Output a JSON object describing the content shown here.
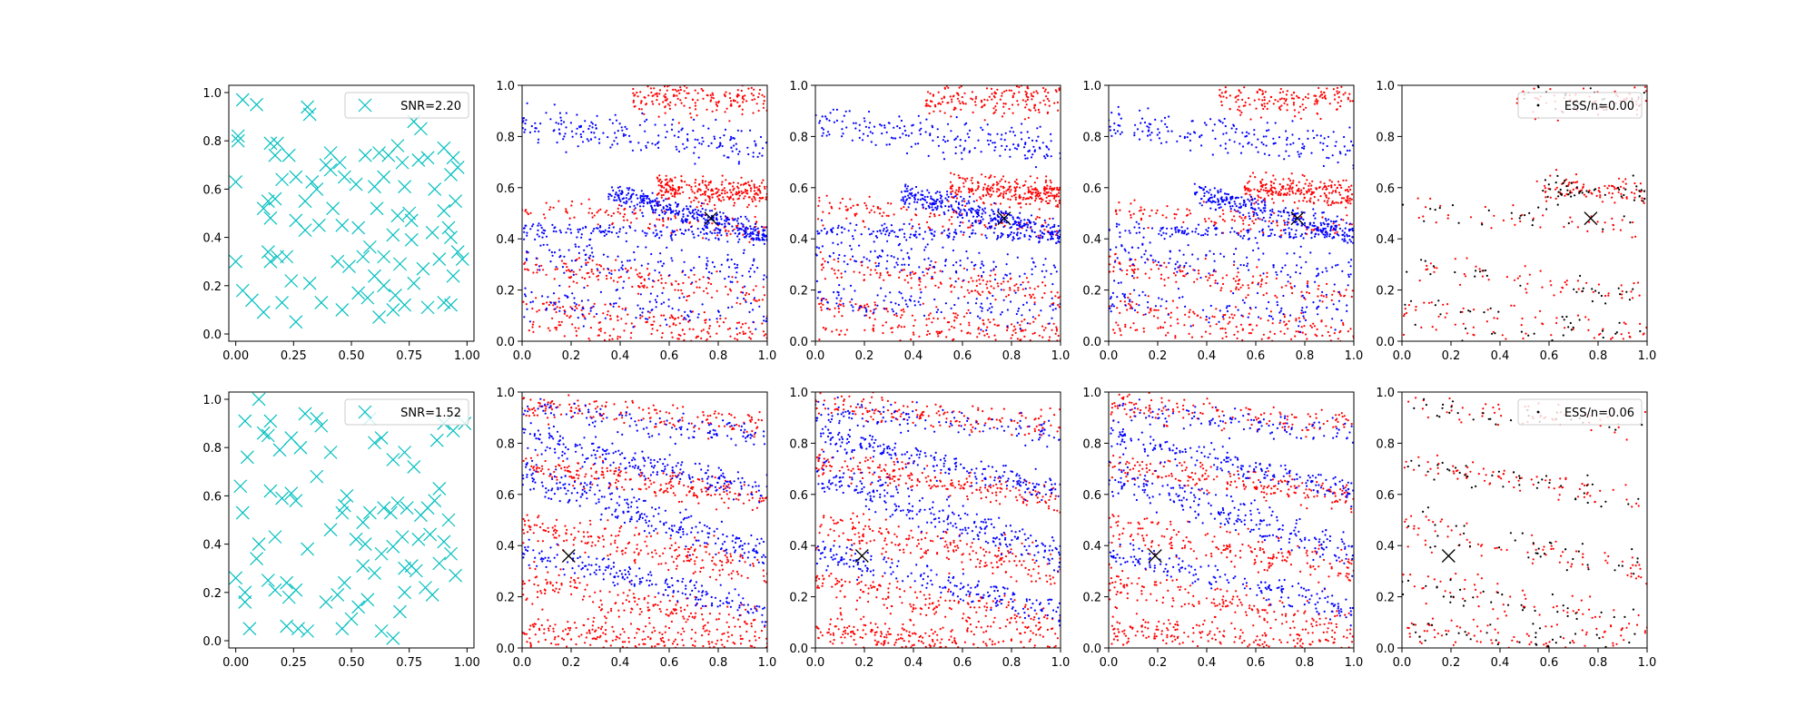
{
  "colors": {
    "design_marker": "#00bfbf",
    "red_points": "#ff0000",
    "blue_points": "#0000ff",
    "black_points": "#000000",
    "true_marker": "#000000"
  },
  "chart_data": [
    {
      "type": "scatter",
      "row": 0,
      "col": 0,
      "xlim": [
        -0.03,
        1.03
      ],
      "ylim": [
        -0.03,
        1.03
      ],
      "xticks": [
        "0.00",
        "0.25",
        "0.50",
        "0.75",
        "1.00"
      ],
      "yticks": [
        "0.0",
        "0.2",
        "0.4",
        "0.6",
        "0.8",
        "1.0"
      ],
      "legend": {
        "label": "SNR=2.20",
        "placement": "top-right",
        "marker": "x"
      },
      "series": [
        {
          "name": "SNR=2.20",
          "marker": "x",
          "color": "#00bfbf",
          "points": [
            [
              0.03,
              0.97
            ],
            [
              0.09,
              0.95
            ],
            [
              0.01,
              0.82
            ],
            [
              0.01,
              0.8
            ],
            [
              0.0,
              0.63
            ],
            [
              0.31,
              0.94
            ],
            [
              0.32,
              0.91
            ],
            [
              0.15,
              0.79
            ],
            [
              0.18,
              0.79
            ],
            [
              0.17,
              0.74
            ],
            [
              0.23,
              0.74
            ],
            [
              0.41,
              0.75
            ],
            [
              0.45,
              0.71
            ],
            [
              0.39,
              0.7
            ],
            [
              0.41,
              0.68
            ],
            [
              0.26,
              0.65
            ],
            [
              0.2,
              0.64
            ],
            [
              0.14,
              0.55
            ],
            [
              0.12,
              0.52
            ],
            [
              0.15,
              0.48
            ],
            [
              0.17,
              0.56
            ],
            [
              0.3,
              0.55
            ],
            [
              0.35,
              0.6
            ],
            [
              0.33,
              0.63
            ],
            [
              0.47,
              0.65
            ],
            [
              0.52,
              0.62
            ],
            [
              0.56,
              0.74
            ],
            [
              0.62,
              0.75
            ],
            [
              0.66,
              0.74
            ],
            [
              0.7,
              0.78
            ],
            [
              0.77,
              0.88
            ],
            [
              0.8,
              0.85
            ],
            [
              0.83,
              0.73
            ],
            [
              0.79,
              0.72
            ],
            [
              0.72,
              0.71
            ],
            [
              0.64,
              0.65
            ],
            [
              0.6,
              0.61
            ],
            [
              0.73,
              0.61
            ],
            [
              0.86,
              0.6
            ],
            [
              0.9,
              0.77
            ],
            [
              0.94,
              0.73
            ],
            [
              0.96,
              0.69
            ],
            [
              0.93,
              0.66
            ],
            [
              0.95,
              0.55
            ],
            [
              0.9,
              0.51
            ],
            [
              0.75,
              0.5
            ],
            [
              0.76,
              0.47
            ],
            [
              0.7,
              0.49
            ],
            [
              0.68,
              0.41
            ],
            [
              0.76,
              0.39
            ],
            [
              0.71,
              0.29
            ],
            [
              0.58,
              0.36
            ],
            [
              0.55,
              0.32
            ],
            [
              0.46,
              0.45
            ],
            [
              0.42,
              0.52
            ],
            [
              0.36,
              0.45
            ],
            [
              0.3,
              0.43
            ],
            [
              0.26,
              0.47
            ],
            [
              0.14,
              0.34
            ],
            [
              0.15,
              0.3
            ],
            [
              0.18,
              0.32
            ],
            [
              0.22,
              0.32
            ],
            [
              0.24,
              0.22
            ],
            [
              0.32,
              0.21
            ],
            [
              0.44,
              0.3
            ],
            [
              0.49,
              0.28
            ],
            [
              0.6,
              0.24
            ],
            [
              0.64,
              0.2
            ],
            [
              0.69,
              0.16
            ],
            [
              0.73,
              0.12
            ],
            [
              0.68,
              0.1
            ],
            [
              0.77,
              0.21
            ],
            [
              0.83,
              0.11
            ],
            [
              0.9,
              0.13
            ],
            [
              0.93,
              0.12
            ],
            [
              0.94,
              0.24
            ],
            [
              0.98,
              0.31
            ],
            [
              0.93,
              0.4
            ],
            [
              0.92,
              0.44
            ],
            [
              0.96,
              0.34
            ],
            [
              0.0,
              0.3
            ],
            [
              0.03,
              0.18
            ],
            [
              0.07,
              0.14
            ],
            [
              0.12,
              0.09
            ],
            [
              0.2,
              0.13
            ],
            [
              0.26,
              0.05
            ],
            [
              0.37,
              0.13
            ],
            [
              0.46,
              0.1
            ],
            [
              0.53,
              0.17
            ],
            [
              0.57,
              0.15
            ],
            [
              0.62,
              0.07
            ],
            [
              0.88,
              0.31
            ],
            [
              0.81,
              0.27
            ],
            [
              0.85,
              0.42
            ],
            [
              0.61,
              0.52
            ],
            [
              0.53,
              0.44
            ],
            [
              0.64,
              0.32
            ]
          ]
        }
      ]
    },
    {
      "type": "scatter",
      "row": 0,
      "col": 1,
      "xlim": [
        0,
        1
      ],
      "ylim": [
        0,
        1
      ],
      "xticks": [
        "0.0",
        "0.2",
        "0.4",
        "0.6",
        "0.8",
        "1.0"
      ],
      "yticks": [
        "0.0",
        "0.2",
        "0.4",
        "0.6",
        "0.8",
        "1.0"
      ],
      "true_marker": [
        0.77,
        0.48
      ],
      "series": [
        {
          "color": "#ff0000"
        },
        {
          "color": "#0000ff"
        }
      ]
    },
    {
      "type": "scatter",
      "row": 0,
      "col": 2,
      "xlim": [
        0,
        1
      ],
      "ylim": [
        0,
        1
      ],
      "xticks": [
        "0.0",
        "0.2",
        "0.4",
        "0.6",
        "0.8",
        "1.0"
      ],
      "yticks": [
        "0.0",
        "0.2",
        "0.4",
        "0.6",
        "0.8",
        "1.0"
      ],
      "true_marker": [
        0.77,
        0.48
      ],
      "series": [
        {
          "color": "#ff0000"
        },
        {
          "color": "#0000ff"
        }
      ]
    },
    {
      "type": "scatter",
      "row": 0,
      "col": 3,
      "xlim": [
        0,
        1
      ],
      "ylim": [
        0,
        1
      ],
      "xticks": [
        "0.0",
        "0.2",
        "0.4",
        "0.6",
        "0.8",
        "1.0"
      ],
      "yticks": [
        "0.0",
        "0.2",
        "0.4",
        "0.6",
        "0.8",
        "1.0"
      ],
      "true_marker": [
        0.77,
        0.48
      ],
      "series": [
        {
          "color": "#ff0000"
        },
        {
          "color": "#0000ff"
        }
      ]
    },
    {
      "type": "scatter",
      "row": 0,
      "col": 4,
      "xlim": [
        0,
        1
      ],
      "ylim": [
        0,
        1
      ],
      "xticks": [
        "0.0",
        "0.2",
        "0.4",
        "0.6",
        "0.8",
        "1.0"
      ],
      "yticks": [
        "0.0",
        "0.2",
        "0.4",
        "0.6",
        "0.8",
        "1.0"
      ],
      "true_marker": [
        0.77,
        0.48
      ],
      "legend": {
        "label": "ESS/n=0.00",
        "placement": "top-right",
        "marker": "."
      },
      "series": [
        {
          "name": "ESS/n=0.00",
          "color": "#000000"
        },
        {
          "color": "#ff0000"
        }
      ]
    },
    {
      "type": "scatter",
      "row": 1,
      "col": 0,
      "xlim": [
        -0.03,
        1.03
      ],
      "ylim": [
        -0.03,
        1.03
      ],
      "xticks": [
        "0.00",
        "0.25",
        "0.50",
        "0.75",
        "1.00"
      ],
      "yticks": [
        "0.0",
        "0.2",
        "0.4",
        "0.6",
        "0.8",
        "1.0"
      ],
      "legend": {
        "label": "SNR=1.52",
        "placement": "top-right",
        "marker": "x"
      },
      "series": [
        {
          "name": "SNR=1.52",
          "marker": "x",
          "color": "#00bfbf",
          "points": [
            [
              0.1,
              1.0
            ],
            [
              0.04,
              0.91
            ],
            [
              0.15,
              0.91
            ],
            [
              0.12,
              0.86
            ],
            [
              0.14,
              0.85
            ],
            [
              0.05,
              0.76
            ],
            [
              0.19,
              0.79
            ],
            [
              0.24,
              0.84
            ],
            [
              0.28,
              0.8
            ],
            [
              0.3,
              0.94
            ],
            [
              0.35,
              0.92
            ],
            [
              0.37,
              0.89
            ],
            [
              0.41,
              0.78
            ],
            [
              0.58,
              0.92
            ],
            [
              0.6,
              0.82
            ],
            [
              0.63,
              0.84
            ],
            [
              0.68,
              0.75
            ],
            [
              0.73,
              0.78
            ],
            [
              0.77,
              0.72
            ],
            [
              0.87,
              0.83
            ],
            [
              0.9,
              0.9
            ],
            [
              0.94,
              0.87
            ],
            [
              0.99,
              0.9
            ],
            [
              0.88,
              0.63
            ],
            [
              0.86,
              0.58
            ],
            [
              0.83,
              0.55
            ],
            [
              0.8,
              0.52
            ],
            [
              0.74,
              0.55
            ],
            [
              0.7,
              0.57
            ],
            [
              0.67,
              0.53
            ],
            [
              0.64,
              0.55
            ],
            [
              0.58,
              0.53
            ],
            [
              0.55,
              0.49
            ],
            [
              0.47,
              0.56
            ],
            [
              0.46,
              0.53
            ],
            [
              0.41,
              0.46
            ],
            [
              0.35,
              0.68
            ],
            [
              0.24,
              0.61
            ],
            [
              0.26,
              0.58
            ],
            [
              0.2,
              0.59
            ],
            [
              0.15,
              0.62
            ],
            [
              0.03,
              0.53
            ],
            [
              0.02,
              0.64
            ],
            [
              0.0,
              0.26
            ],
            [
              0.04,
              0.2
            ],
            [
              0.04,
              0.16
            ],
            [
              0.09,
              0.34
            ],
            [
              0.14,
              0.25
            ],
            [
              0.17,
              0.21
            ],
            [
              0.22,
              0.24
            ],
            [
              0.23,
              0.18
            ],
            [
              0.26,
              0.21
            ],
            [
              0.22,
              0.06
            ],
            [
              0.27,
              0.05
            ],
            [
              0.31,
              0.04
            ],
            [
              0.39,
              0.16
            ],
            [
              0.44,
              0.19
            ],
            [
              0.47,
              0.24
            ],
            [
              0.46,
              0.05
            ],
            [
              0.5,
              0.09
            ],
            [
              0.53,
              0.14
            ],
            [
              0.57,
              0.17
            ],
            [
              0.55,
              0.31
            ],
            [
              0.6,
              0.28
            ],
            [
              0.63,
              0.36
            ],
            [
              0.68,
              0.39
            ],
            [
              0.72,
              0.43
            ],
            [
              0.76,
              0.31
            ],
            [
              0.78,
              0.29
            ],
            [
              0.73,
              0.3
            ],
            [
              0.82,
              0.22
            ],
            [
              0.85,
              0.19
            ],
            [
              0.88,
              0.32
            ],
            [
              0.9,
              0.41
            ],
            [
              0.93,
              0.36
            ],
            [
              0.95,
              0.27
            ],
            [
              0.71,
              0.12
            ],
            [
              0.68,
              0.01
            ],
            [
              0.63,
              0.04
            ],
            [
              0.06,
              0.05
            ],
            [
              0.1,
              0.4
            ],
            [
              0.17,
              0.43
            ],
            [
              0.31,
              0.38
            ],
            [
              0.48,
              0.6
            ],
            [
              0.52,
              0.42
            ],
            [
              0.56,
              0.4
            ],
            [
              0.79,
              0.42
            ],
            [
              0.92,
              0.5
            ],
            [
              0.84,
              0.44
            ],
            [
              0.73,
              0.2
            ]
          ]
        }
      ]
    },
    {
      "type": "scatter",
      "row": 1,
      "col": 1,
      "xlim": [
        0,
        1
      ],
      "ylim": [
        0,
        1
      ],
      "xticks": [
        "0.0",
        "0.2",
        "0.4",
        "0.6",
        "0.8",
        "1.0"
      ],
      "yticks": [
        "0.0",
        "0.2",
        "0.4",
        "0.6",
        "0.8",
        "1.0"
      ],
      "true_marker": [
        0.19,
        0.36
      ],
      "series": [
        {
          "color": "#ff0000"
        },
        {
          "color": "#0000ff"
        }
      ]
    },
    {
      "type": "scatter",
      "row": 1,
      "col": 2,
      "xlim": [
        0,
        1
      ],
      "ylim": [
        0,
        1
      ],
      "xticks": [
        "0.0",
        "0.2",
        "0.4",
        "0.6",
        "0.8",
        "1.0"
      ],
      "yticks": [
        "0.0",
        "0.2",
        "0.4",
        "0.6",
        "0.8",
        "1.0"
      ],
      "true_marker": [
        0.19,
        0.36
      ],
      "series": [
        {
          "color": "#ff0000"
        },
        {
          "color": "#0000ff"
        }
      ]
    },
    {
      "type": "scatter",
      "row": 1,
      "col": 3,
      "xlim": [
        0,
        1
      ],
      "ylim": [
        0,
        1
      ],
      "xticks": [
        "0.0",
        "0.2",
        "0.4",
        "0.6",
        "0.8",
        "1.0"
      ],
      "yticks": [
        "0.0",
        "0.2",
        "0.4",
        "0.6",
        "0.8",
        "1.0"
      ],
      "true_marker": [
        0.19,
        0.36
      ],
      "series": [
        {
          "color": "#ff0000"
        },
        {
          "color": "#0000ff"
        }
      ]
    },
    {
      "type": "scatter",
      "row": 1,
      "col": 4,
      "xlim": [
        0,
        1
      ],
      "ylim": [
        0,
        1
      ],
      "xticks": [
        "0.0",
        "0.2",
        "0.4",
        "0.6",
        "0.8",
        "1.0"
      ],
      "yticks": [
        "0.0",
        "0.2",
        "0.4",
        "0.6",
        "0.8",
        "1.0"
      ],
      "true_marker": [
        0.19,
        0.36
      ],
      "legend": {
        "label": "ESS/n=0.06",
        "placement": "top-right",
        "marker": "."
      },
      "series": [
        {
          "name": "ESS/n=0.06",
          "color": "#000000"
        },
        {
          "color": "#ff0000"
        }
      ]
    }
  ]
}
